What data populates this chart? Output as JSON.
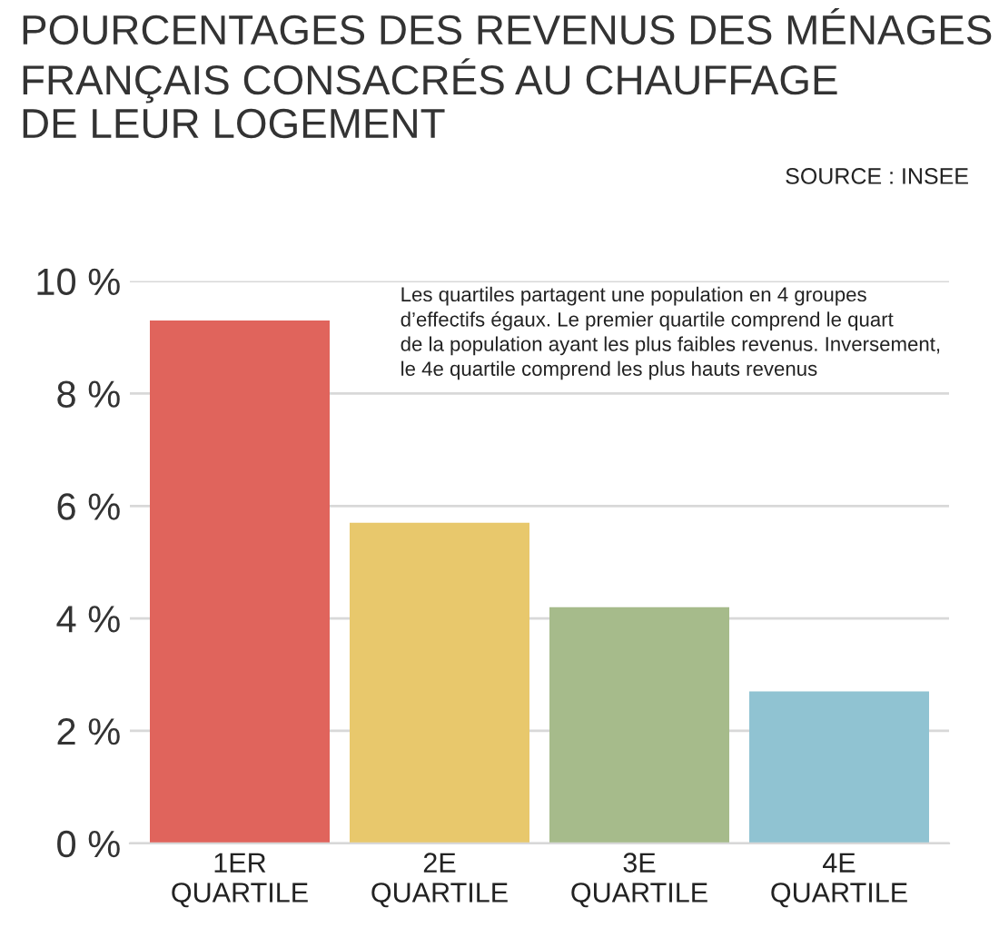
{
  "chart_data": {
    "type": "bar",
    "title": "POURCENTAGES DES REVENUS DES MÉNAGES\nFRANÇAIS CONSACRÉS AU CHAUFFAGE\nDE LEUR LOGEMENT",
    "categories": [
      "1ER\nQUARTILE",
      "2E\nQUARTILE",
      "3E\nQUARTILE",
      "4E\nQUARTILE"
    ],
    "values": [
      9.3,
      5.7,
      4.2,
      2.7
    ],
    "colors": [
      "#e0645c",
      "#e8c86c",
      "#a6bb8b",
      "#90c3d2"
    ],
    "ylim": [
      0,
      10
    ],
    "yticks": [
      {
        "value": 0,
        "label": "0 %"
      },
      {
        "value": 2,
        "label": "2 %"
      },
      {
        "value": 4,
        "label": "4 %"
      },
      {
        "value": 6,
        "label": "6 %"
      },
      {
        "value": 8,
        "label": "8 %"
      },
      {
        "value": 10,
        "label": "10 %"
      }
    ],
    "grid": "y",
    "annotations": [
      "SOURCE : INSEE",
      "Les quartiles partagent une population en 4 groupes\nd’effectifs égaux. Le premier quartile comprend le quart\nde la population ayant les plus faibles revenus. Inversement,\nle 4e quartile comprend les plus hauts revenus"
    ]
  }
}
